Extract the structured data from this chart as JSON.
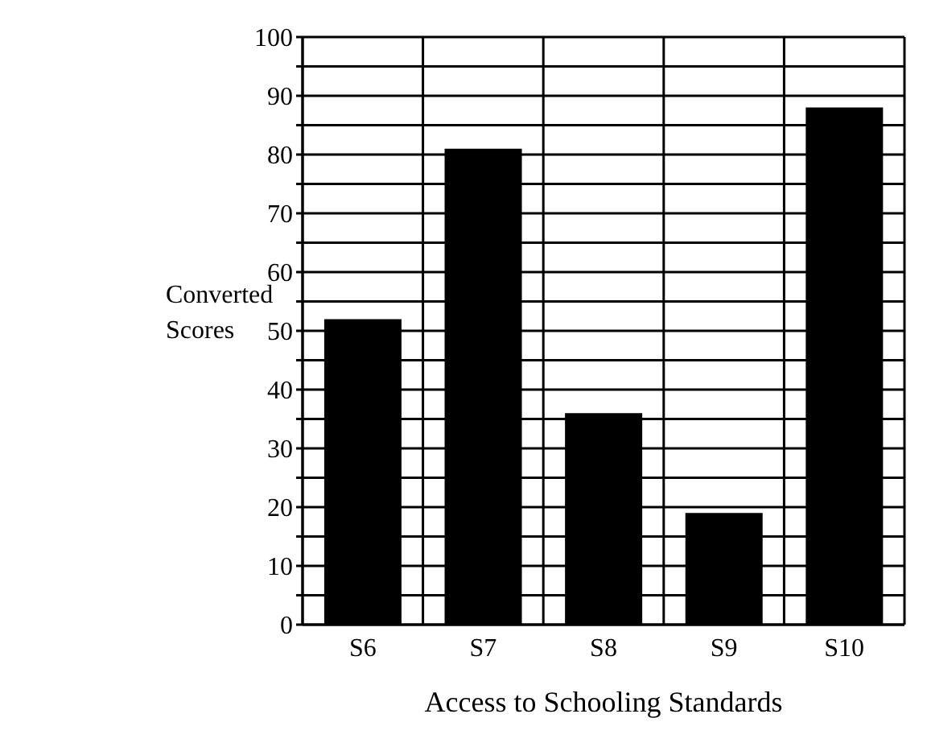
{
  "chart_data": {
    "type": "bar",
    "xlabel": "Access to Schooling Standards",
    "ylabel": "Converted Scores",
    "categories": [
      "S6",
      "S7",
      "S8",
      "S9",
      "S10"
    ],
    "values": [
      52,
      81,
      36,
      19,
      88
    ],
    "color": "#000000",
    "ylim": [
      0,
      100
    ],
    "yticks": [
      0,
      {
        "value": 5,
        "label": null
      },
      10,
      {
        "value": 15,
        "label": null
      },
      20,
      {
        "value": 25,
        "label": null
      },
      30,
      {
        "value": 35,
        "label": null
      },
      40,
      {
        "value": 45,
        "label": null
      },
      50,
      {
        "value": 55,
        "label": null
      },
      60,
      {
        "value": 65,
        "label": null
      },
      70,
      {
        "value": 75,
        "label": null
      },
      80,
      {
        "value": 85,
        "label": null
      },
      90,
      {
        "value": 95,
        "label": null
      },
      100
    ],
    "grid": true
  }
}
